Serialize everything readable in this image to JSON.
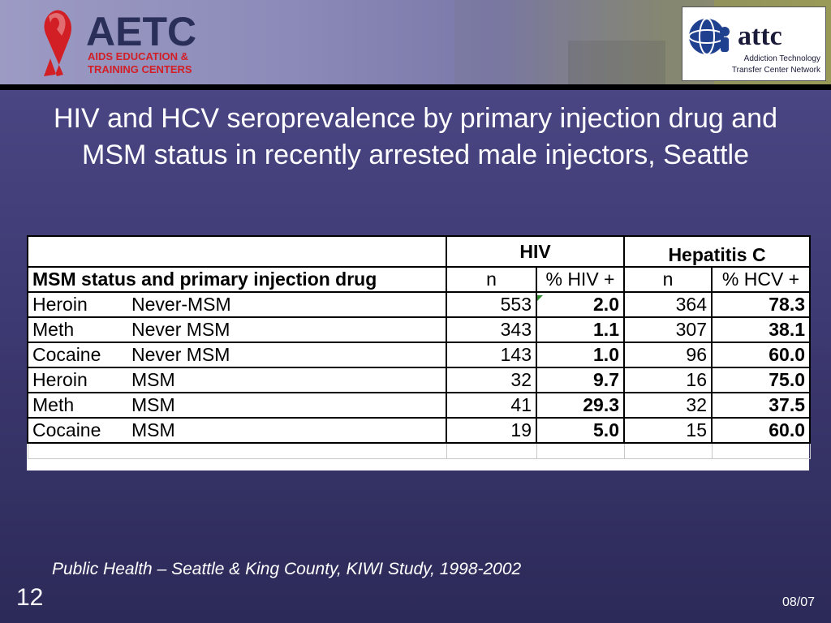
{
  "header": {
    "left_logo": {
      "main": "AETC",
      "line1": "AIDS EDUCATION &",
      "line2": "TRAINING CENTERS",
      "icon": "red-ribbon-icon",
      "color": "#d21f26"
    },
    "right_logo": {
      "main": "attc",
      "line1": "Addiction Technology",
      "line2": "Transfer Center Network",
      "icon": "people-globe-icon",
      "color": "#1f3f8f"
    }
  },
  "slide": {
    "title": "HIV and HCV seroprevalence by primary injection drug and MSM status in recently arrested male injectors, Seattle",
    "citation": "Public Health – Seattle & King County, KIWI Study, 1998-2002",
    "number": "12",
    "date": "08/07"
  },
  "table": {
    "group_headers": {
      "hiv": "HIV",
      "hcv": "Hepatitis C"
    },
    "column_headers": {
      "label": "MSM status and primary injection drug",
      "hiv_n": "n",
      "hiv_pct": "% HIV +",
      "hcv_n": "n",
      "hcv_pct": "% HCV +"
    },
    "rows": [
      {
        "drug": "Heroin",
        "msm": "Never-MSM",
        "hiv_n": "553",
        "hiv_pct": "2.0",
        "hcv_n": "364",
        "hcv_pct": "78.3"
      },
      {
        "drug": "Meth",
        "msm": "Never MSM",
        "hiv_n": "343",
        "hiv_pct": "1.1",
        "hcv_n": "307",
        "hcv_pct": "38.1"
      },
      {
        "drug": "Cocaine",
        "msm": "Never MSM",
        "hiv_n": "143",
        "hiv_pct": "1.0",
        "hcv_n": "96",
        "hcv_pct": "60.0"
      },
      {
        "drug": "Heroin",
        "msm": "MSM",
        "hiv_n": "32",
        "hiv_pct": "9.7",
        "hcv_n": "16",
        "hcv_pct": "75.0"
      },
      {
        "drug": "Meth",
        "msm": "MSM",
        "hiv_n": "41",
        "hiv_pct": "29.3",
        "hcv_n": "32",
        "hcv_pct": "37.5"
      },
      {
        "drug": "Cocaine",
        "msm": "MSM",
        "hiv_n": "19",
        "hiv_pct": "5.0",
        "hcv_n": "15",
        "hcv_pct": "60.0"
      }
    ]
  }
}
